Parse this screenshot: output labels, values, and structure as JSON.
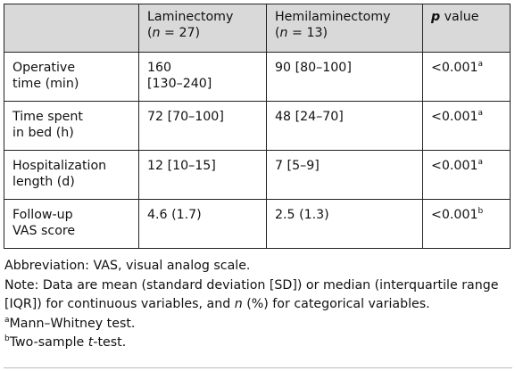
{
  "table": {
    "header": {
      "col1": "",
      "col2_line1": "Laminectomy",
      "col2_n_prefix": "(",
      "col2_n_var": "n",
      "col2_n_value": " = 27)",
      "col3_line1": "Hemilaminectomy",
      "col3_n_prefix": "(",
      "col3_n_var": "n",
      "col3_n_value": " = 13)",
      "col4_p": "p",
      "col4_rest": " value"
    },
    "rows": [
      {
        "label_line1": "Operative",
        "label_line2": "time (min)",
        "lam_line1": "160",
        "lam_line2": "[130–240]",
        "hemi": "90 [80–100]",
        "p": "<0.001",
        "sup": "a"
      },
      {
        "label_line1": "Time spent",
        "label_line2": "in bed (h)",
        "lam_line1": "72 [70–100]",
        "lam_line2": "",
        "hemi": "48 [24–70]",
        "p": "<0.001",
        "sup": "a"
      },
      {
        "label_line1": "Hospitalization",
        "label_line2": "length (d)",
        "lam_line1": "12 [10–15]",
        "lam_line2": "",
        "hemi": "7 [5–9]",
        "p": "<0.001",
        "sup": "a"
      },
      {
        "label_line1": "Follow-up",
        "label_line2": "VAS score",
        "lam_line1": "4.6 (1.7)",
        "lam_line2": "",
        "hemi": "2.5 (1.3)",
        "p": "<0.001",
        "sup": "b"
      }
    ]
  },
  "notes": {
    "abbreviation": "Abbreviation: VAS, visual analog scale.",
    "note_part1": "Note: Data are mean (standard deviation [SD]) or median (interquartile range [IQR]) for continuous variables, and ",
    "note_n": "n",
    "note_part2": " (%) for categorical variables.",
    "footnote_a_sup": "a",
    "footnote_a_text": "Mann–Whitney test.",
    "footnote_b_sup": "b",
    "footnote_b_text_part1": "Two-sample ",
    "footnote_b_t": "t",
    "footnote_b_text_part2": "-test."
  }
}
